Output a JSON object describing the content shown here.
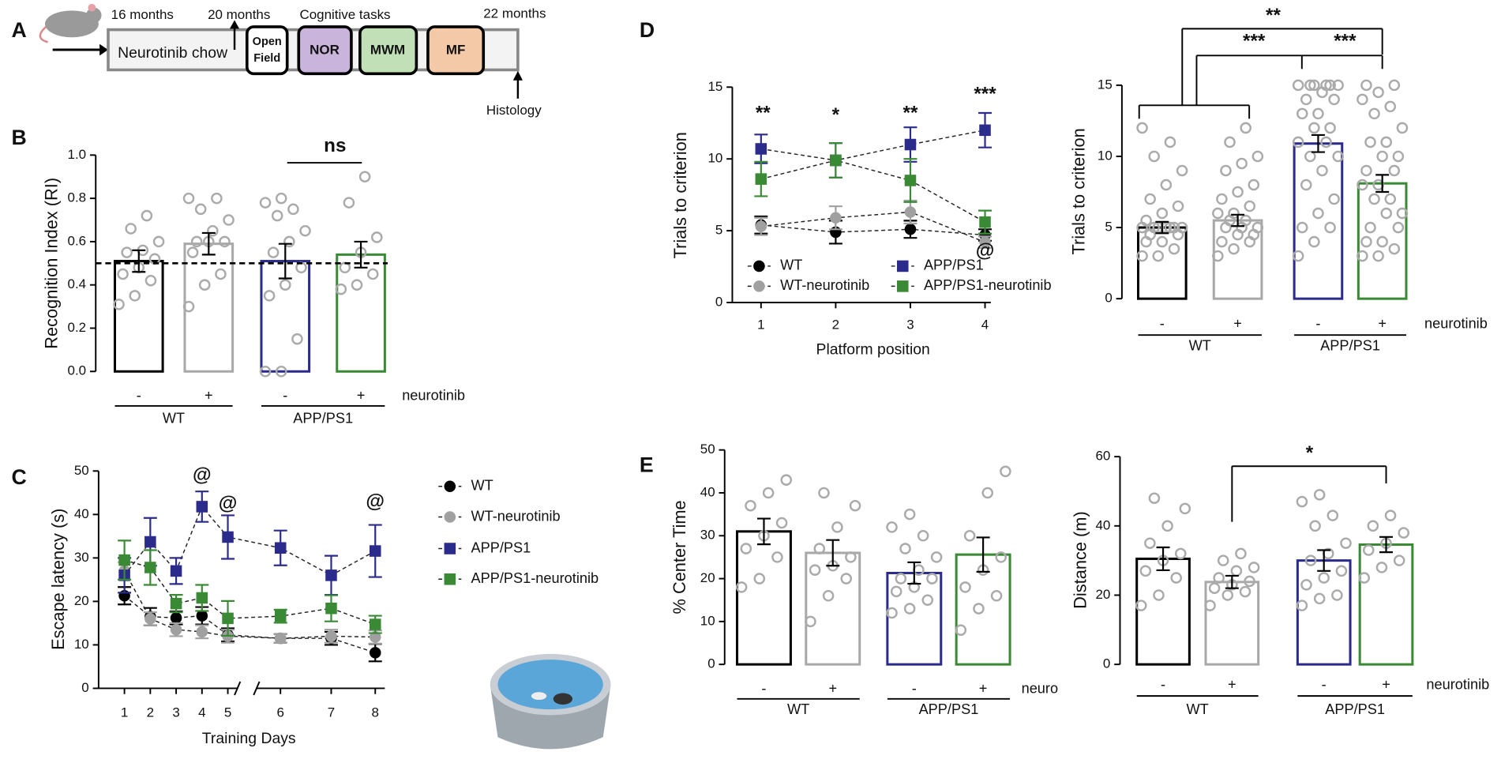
{
  "panel_labels": [
    "A",
    "B",
    "C",
    "D",
    "E"
  ],
  "timeline": {
    "start": "16 months",
    "mid": "20 months",
    "tasks_label": "Cognitive tasks",
    "end": "22 months",
    "chow": "Neurotinib chow",
    "open_field": [
      "Open",
      "Field"
    ],
    "tasks": [
      "NOR",
      "MWM",
      "MF"
    ],
    "histology": "Histology"
  },
  "chart_data": [
    {
      "type": "bar",
      "ylabel": "Recognition Index (RI)",
      "categories": [
        "-",
        "+",
        "-",
        "+"
      ],
      "groups": [
        "WT",
        "APP/PS1"
      ],
      "factor_label": "neurotinib",
      "values": [
        0.51,
        0.59,
        0.51,
        0.54
      ],
      "errors": [
        0.05,
        0.05,
        0.08,
        0.06
      ],
      "colors": [
        "#000000",
        "#a8a8a8",
        "#2b2b8c",
        "#3a8a35"
      ],
      "points": [
        [
          0.31,
          0.35,
          0.42,
          0.45,
          0.48,
          0.52,
          0.55,
          0.56,
          0.6,
          0.66,
          0.72
        ],
        [
          0.3,
          0.4,
          0.45,
          0.55,
          0.6,
          0.6,
          0.6,
          0.65,
          0.7,
          0.75,
          0.8,
          0.8
        ],
        [
          0,
          0,
          0.15,
          0.35,
          0.4,
          0.48,
          0.55,
          0.6,
          0.65,
          0.72,
          0.75,
          0.78,
          0.8
        ],
        [
          0.38,
          0.4,
          0.45,
          0.48,
          0.55,
          0.62,
          0.78,
          0.9
        ]
      ],
      "reference_line": 0.5,
      "annotations": [
        "ns"
      ],
      "ylim": [
        0,
        1
      ],
      "yticks": [
        {
          "value": 0,
          "label": "0.0"
        },
        0.2,
        0.4,
        0.6,
        0.8,
        {
          "value": 1,
          "label": "1.0"
        }
      ]
    },
    {
      "type": "line",
      "ylabel": "Escape latency (s)",
      "xlabel": "Training Days",
      "categories": [
        "1",
        "2",
        "3",
        "4",
        "5",
        "6",
        "7",
        "8"
      ],
      "series": [
        {
          "name": "WT",
          "color": "#000000",
          "marker": "circle",
          "values": [
            21.3,
            16.5,
            16.2,
            16.7,
            12.3,
            11.5,
            11.5,
            8.2
          ],
          "errors": [
            2,
            2,
            1.5,
            2,
            1.5,
            1,
            1.5,
            2
          ]
        },
        {
          "name": "WT-neurotinib",
          "color": "#a0a0a0",
          "marker": "circle",
          "values": [
            27,
            16,
            13.5,
            13,
            12,
            11.5,
            12,
            11.8
          ],
          "errors": [
            2,
            1.5,
            1.5,
            1.5,
            1.5,
            1,
            1.5,
            1.5
          ]
        },
        {
          "name": "APP/PS1",
          "color": "#2b2b8c",
          "marker": "square",
          "values": [
            26,
            33.7,
            27,
            41.8,
            34.8,
            32.3,
            26,
            31.6
          ],
          "errors": [
            4,
            5.5,
            3,
            3.5,
            5,
            4,
            4.5,
            6
          ]
        },
        {
          "name": "APP/PS1-neurotinib",
          "color": "#3a8a35",
          "marker": "square",
          "values": [
            29.5,
            27.8,
            19.5,
            20.8,
            16.1,
            16.6,
            18.4,
            14.7
          ],
          "errors": [
            4.5,
            4,
            2,
            3,
            4,
            1.5,
            3,
            2
          ]
        }
      ],
      "annotations": [
        "@",
        "@",
        "@"
      ],
      "ylim": [
        0,
        50
      ],
      "yticks": [
        0,
        10,
        20,
        30,
        40,
        50
      ]
    },
    {
      "type": "line",
      "ylabel": "Trials to criterion",
      "xlabel": "Platform position",
      "categories": [
        "1",
        "2",
        "3",
        "4"
      ],
      "series": [
        {
          "name": "WT",
          "color": "#000000",
          "marker": "circle",
          "values": [
            5.4,
            4.9,
            5.1,
            4.7
          ],
          "errors": [
            0.6,
            0.8,
            0.6,
            0.4
          ]
        },
        {
          "name": "WT-neurotinib",
          "color": "#a0a0a0",
          "marker": "circle",
          "values": [
            5.3,
            5.9,
            6.3,
            4.2
          ],
          "errors": [
            0.6,
            0.8,
            0.8,
            0.4
          ]
        },
        {
          "name": "APP/PS1",
          "color": "#2b2b8c",
          "marker": "square",
          "values": [
            10.7,
            9.9,
            11,
            12
          ],
          "errors": [
            1,
            1.2,
            1.2,
            1.2
          ]
        },
        {
          "name": "APP/PS1-neurotinib",
          "color": "#3a8a35",
          "marker": "square",
          "values": [
            8.6,
            9.9,
            8.5,
            5.6
          ],
          "errors": [
            1.2,
            1.2,
            1.5,
            0.8
          ]
        }
      ],
      "annotations": [
        "**",
        "*",
        "**",
        "***",
        "@"
      ],
      "ylim": [
        0,
        15
      ],
      "yticks": [
        0,
        5,
        10,
        15
      ]
    },
    {
      "type": "bar",
      "ylabel": "Trials to criterion",
      "categories": [
        "-",
        "+",
        "-",
        "+"
      ],
      "groups": [
        "WT",
        "APP/PS1"
      ],
      "factor_label": "neurotinib",
      "values": [
        5,
        5.5,
        10.9,
        8.1
      ],
      "errors": [
        0.4,
        0.4,
        0.6,
        0.6
      ],
      "colors": [
        "#000000",
        "#a8a8a8",
        "#2b2b8c",
        "#3a8a35"
      ],
      "points": [
        [
          3,
          3,
          3.5,
          4,
          4,
          4.5,
          4.5,
          5,
          5,
          5,
          5,
          5,
          5,
          5,
          5.5,
          6,
          6.5,
          7,
          8,
          9,
          10,
          11,
          12
        ],
        [
          3,
          3.5,
          4,
          4,
          4.5,
          4.5,
          5,
          5,
          5,
          5.5,
          5.5,
          6,
          6,
          6.5,
          7,
          7.5,
          8,
          9,
          9.5,
          10,
          11,
          12
        ],
        [
          3,
          4,
          5,
          5,
          6,
          7,
          8,
          9,
          10,
          10,
          11,
          11,
          12,
          12,
          13,
          13,
          14,
          14,
          14.5,
          15,
          15,
          15,
          15,
          15,
          15
        ],
        [
          3,
          3,
          3.5,
          4,
          4,
          5,
          5,
          6,
          6,
          7,
          7,
          8,
          8,
          9,
          9,
          10,
          10,
          11,
          11,
          12,
          13,
          13.5,
          14,
          14.5,
          15,
          15
        ]
      ],
      "annotations": [
        "**",
        "***",
        "***"
      ],
      "ylim": [
        0,
        15
      ],
      "yticks": [
        0,
        5,
        10,
        15
      ]
    },
    {
      "type": "bar",
      "ylabel": "% Center Time",
      "categories": [
        "-",
        "+",
        "-",
        "+"
      ],
      "groups": [
        "WT",
        "APP/PS1"
      ],
      "factor_label": "neuro",
      "values": [
        31,
        26,
        21.3,
        25.6
      ],
      "errors": [
        3,
        3,
        2.5,
        4
      ],
      "colors": [
        "#000000",
        "#a8a8a8",
        "#2b2b8c",
        "#3a8a35"
      ],
      "points": [
        [
          18,
          20,
          25,
          27,
          30,
          33,
          37,
          40,
          43
        ],
        [
          10,
          16,
          20,
          22,
          23,
          25,
          27,
          32,
          37,
          40
        ],
        [
          12,
          13,
          15,
          17,
          18,
          20,
          20,
          22,
          25,
          27,
          30,
          32,
          35
        ],
        [
          8,
          13,
          16,
          18,
          22,
          25,
          30,
          40,
          45
        ]
      ],
      "annotations": [],
      "ylim": [
        0,
        50
      ],
      "yticks": [
        0,
        10,
        20,
        30,
        40,
        50
      ]
    },
    {
      "type": "bar",
      "ylabel": "Distance (m)",
      "categories": [
        "-",
        "+",
        "-",
        "+"
      ],
      "groups": [
        "WT",
        "APP/PS1"
      ],
      "factor_label": "neurotinib",
      "values": [
        30.5,
        23.8,
        30,
        34.6
      ],
      "errors": [
        3.3,
        1.8,
        3,
        2.2
      ],
      "colors": [
        "#000000",
        "#a8a8a8",
        "#2b2b8c",
        "#3a8a35"
      ],
      "points": [
        [
          17,
          20,
          25,
          27,
          30,
          32,
          35,
          40,
          45,
          48
        ],
        [
          17,
          20,
          21,
          22,
          23,
          24,
          25,
          27,
          28,
          30,
          32
        ],
        [
          17,
          19,
          20,
          23,
          25,
          27,
          30,
          32,
          35,
          40,
          43,
          47,
          49
        ],
        [
          25,
          28,
          30,
          33,
          35,
          38,
          40,
          43
        ]
      ],
      "annotations": [
        "*"
      ],
      "ylim": [
        0,
        60
      ],
      "yticks": [
        0,
        20,
        40,
        60
      ]
    }
  ]
}
